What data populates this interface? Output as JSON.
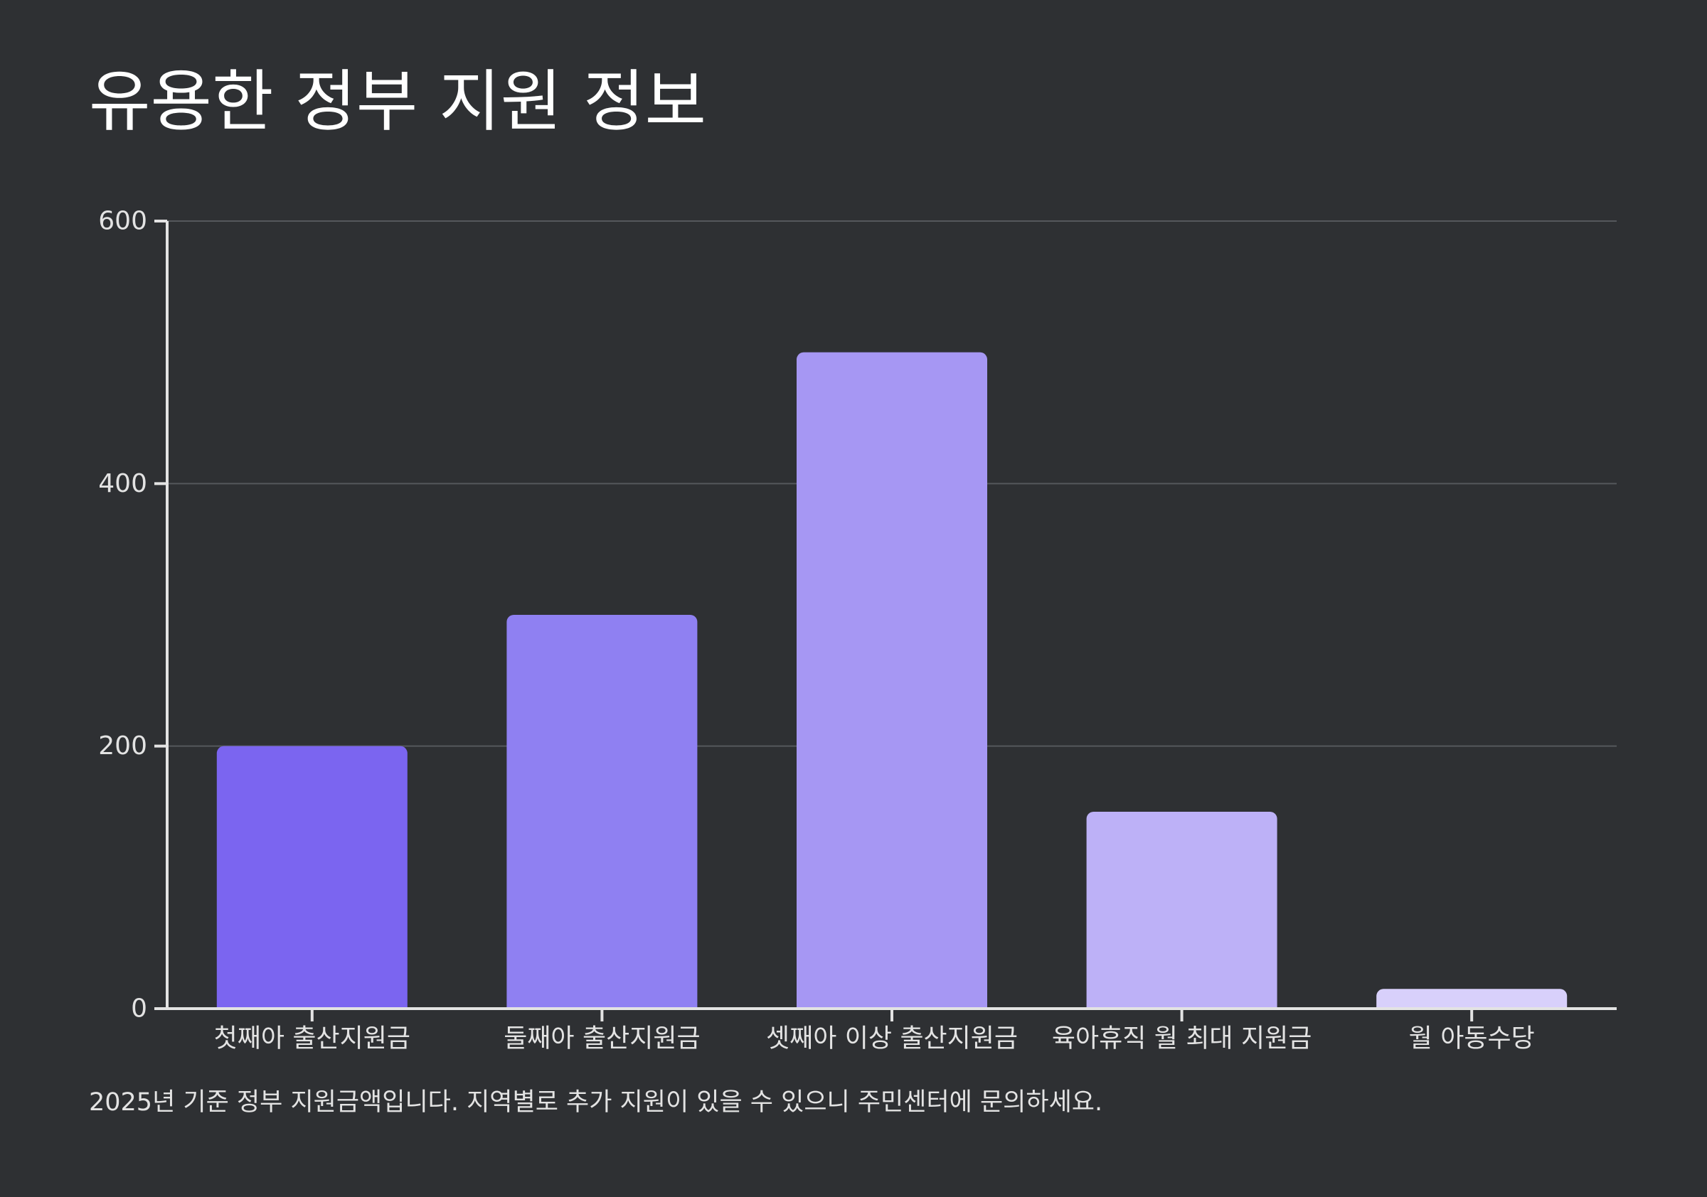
{
  "title": "유용한 정부 지원 정보",
  "footnote": "2025년 기준 정부 지원금액입니다. 지역별로 추가 지원이 있을 수 있으니 주민센터에 문의하세요.",
  "chart_data": {
    "type": "bar",
    "title": "유용한 정부 지원 정보",
    "xlabel": "",
    "ylabel": "",
    "categories": [
      "첫째아 출산지원금",
      "둘째아 출산지원금",
      "셋째아 이상 출산지원금",
      "육아휴직 월 최대 지원금",
      "월 아동수당"
    ],
    "values": [
      200,
      300,
      500,
      150,
      15
    ],
    "ylim": [
      0,
      600
    ],
    "yticks": [
      0,
      200,
      400,
      600
    ],
    "grid": true,
    "legend": "none",
    "colors": [
      "#7b65f0",
      "#8f80f2",
      "#a697f3",
      "#bdb1f7",
      "#d8d0fb"
    ],
    "gridline_color": "#55585c",
    "axis_color": "#e3e3e3"
  }
}
